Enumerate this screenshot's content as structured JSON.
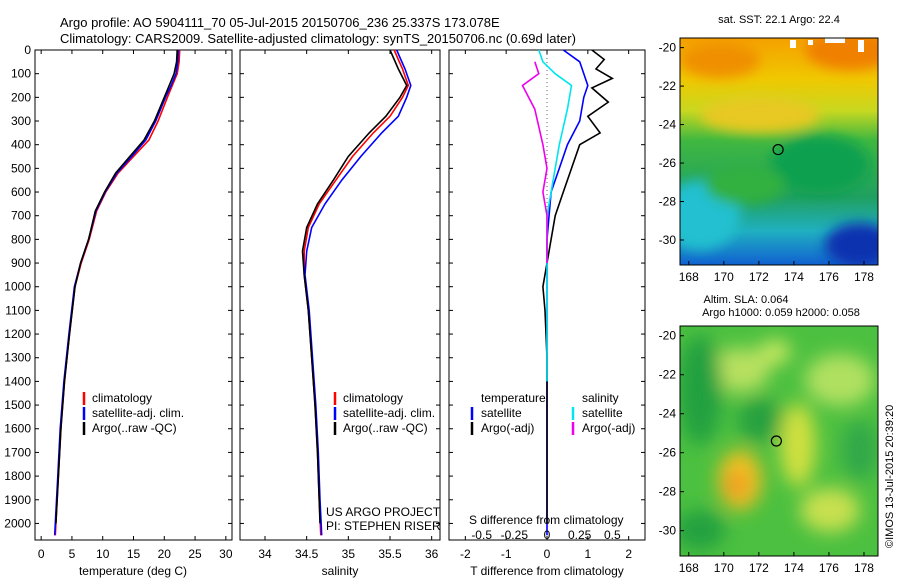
{
  "header": {
    "title_line1": "Argo profile: AO 5904111_70 05-Jul-2015 20150706_236 25.337S 173.078E",
    "title_line2": "Climatology: CARS2009. Satellite-adjusted climatology: synTS_20150706.nc (0.69d later)"
  },
  "credits": {
    "project": "US ARGO PROJECT",
    "pi": "PI: STEPHEN RISER",
    "timestamp": "©IMOS 13-Jul-2015 20:39:20"
  },
  "colors": {
    "climatology": "#ff0000",
    "satellite": "#0000ff",
    "argo": "#000000",
    "s_satellite": "#00e5ee",
    "s_argo": "#ee00ee"
  },
  "chart_data": [
    {
      "type": "line",
      "name": "temperature-profile",
      "xlabel": "temperature (deg C)",
      "ylabel": "",
      "xlim": [
        -1,
        31
      ],
      "ylim": [
        2070,
        0
      ],
      "xticks": [
        0,
        5,
        10,
        15,
        20,
        25,
        30
      ],
      "yticks": [
        0,
        100,
        200,
        300,
        400,
        500,
        600,
        700,
        800,
        900,
        1000,
        1100,
        1200,
        1300,
        1400,
        1500,
        1600,
        1700,
        1800,
        1900,
        2000
      ],
      "legend": [
        "climatology",
        "satellite-adj. clim.",
        "Argo(..raw -QC)"
      ],
      "legend_position": "lower-left",
      "series": [
        {
          "name": "climatology",
          "color": "red",
          "points": [
            [
              22.5,
              0
            ],
            [
              22.4,
              50
            ],
            [
              22.1,
              100
            ],
            [
              21.3,
              150
            ],
            [
              20.5,
              200
            ],
            [
              19.0,
              300
            ],
            [
              17.5,
              380
            ],
            [
              15.0,
              450
            ],
            [
              12.5,
              520
            ],
            [
              10.5,
              600
            ],
            [
              9.0,
              680
            ],
            [
              7.8,
              800
            ],
            [
              6.5,
              900
            ],
            [
              5.5,
              1000
            ],
            [
              4.6,
              1200
            ],
            [
              3.8,
              1400
            ],
            [
              3.2,
              1600
            ],
            [
              2.8,
              1800
            ],
            [
              2.4,
              2000
            ],
            [
              2.3,
              2050
            ]
          ]
        },
        {
          "name": "satellite-adj. clim.",
          "color": "blue",
          "points": [
            [
              22.3,
              0
            ],
            [
              22.2,
              50
            ],
            [
              21.9,
              100
            ],
            [
              21.1,
              150
            ],
            [
              20.2,
              200
            ],
            [
              18.6,
              300
            ],
            [
              17.0,
              380
            ],
            [
              14.7,
              450
            ],
            [
              12.3,
              520
            ],
            [
              10.4,
              600
            ],
            [
              8.9,
              680
            ],
            [
              7.7,
              800
            ],
            [
              6.4,
              900
            ],
            [
              5.4,
              1000
            ],
            [
              4.5,
              1200
            ],
            [
              3.7,
              1400
            ],
            [
              3.1,
              1600
            ],
            [
              2.7,
              1800
            ],
            [
              2.3,
              2000
            ],
            [
              2.2,
              2050
            ]
          ]
        },
        {
          "name": "Argo(..raw -QC)",
          "color": "black",
          "points": [
            [
              22.1,
              0
            ],
            [
              22.0,
              50
            ],
            [
              21.6,
              100
            ],
            [
              20.8,
              150
            ],
            [
              20.0,
              200
            ],
            [
              18.4,
              300
            ],
            [
              16.7,
              380
            ],
            [
              14.4,
              450
            ],
            [
              12.1,
              520
            ],
            [
              10.3,
              600
            ],
            [
              8.8,
              680
            ],
            [
              7.7,
              800
            ],
            [
              6.4,
              900
            ],
            [
              5.5,
              1000
            ],
            [
              4.6,
              1200
            ],
            [
              3.8,
              1400
            ],
            [
              3.2,
              1600
            ],
            [
              2.8,
              1800
            ],
            [
              2.4,
              2000
            ]
          ]
        }
      ]
    },
    {
      "type": "line",
      "name": "salinity-profile",
      "xlabel": "salinity",
      "ylabel": "",
      "xlim": [
        33.7,
        36.1
      ],
      "ylim": [
        2070,
        0
      ],
      "xticks": [
        34,
        34.5,
        35,
        35.5,
        36
      ],
      "legend": [
        "climatology",
        "satellite-adj. clim.",
        "Argo(..raw -QC)"
      ],
      "legend_position": "lower-right",
      "series": [
        {
          "name": "climatology",
          "color": "red",
          "points": [
            [
              35.55,
              0
            ],
            [
              35.6,
              40
            ],
            [
              35.65,
              80
            ],
            [
              35.72,
              150
            ],
            [
              35.65,
              200
            ],
            [
              35.5,
              280
            ],
            [
              35.3,
              350
            ],
            [
              35.05,
              450
            ],
            [
              34.85,
              550
            ],
            [
              34.65,
              650
            ],
            [
              34.52,
              750
            ],
            [
              34.47,
              850
            ],
            [
              34.47,
              950
            ],
            [
              34.52,
              1100
            ],
            [
              34.56,
              1300
            ],
            [
              34.6,
              1500
            ],
            [
              34.63,
              1700
            ],
            [
              34.65,
              1900
            ],
            [
              34.67,
              2050
            ]
          ]
        },
        {
          "name": "satellite-adj. clim.",
          "color": "blue",
          "points": [
            [
              35.58,
              0
            ],
            [
              35.63,
              40
            ],
            [
              35.68,
              80
            ],
            [
              35.75,
              150
            ],
            [
              35.7,
              200
            ],
            [
              35.6,
              280
            ],
            [
              35.4,
              350
            ],
            [
              35.15,
              450
            ],
            [
              34.92,
              550
            ],
            [
              34.72,
              650
            ],
            [
              34.56,
              750
            ],
            [
              34.5,
              850
            ],
            [
              34.48,
              950
            ],
            [
              34.53,
              1100
            ],
            [
              34.57,
              1300
            ],
            [
              34.61,
              1500
            ],
            [
              34.64,
              1700
            ],
            [
              34.66,
              1900
            ],
            [
              34.68,
              2050
            ]
          ]
        },
        {
          "name": "Argo(..raw -QC)",
          "color": "black",
          "points": [
            [
              35.5,
              0
            ],
            [
              35.55,
              40
            ],
            [
              35.6,
              80
            ],
            [
              35.7,
              150
            ],
            [
              35.62,
              200
            ],
            [
              35.45,
              280
            ],
            [
              35.25,
              350
            ],
            [
              35.0,
              450
            ],
            [
              34.82,
              550
            ],
            [
              34.63,
              650
            ],
            [
              34.5,
              750
            ],
            [
              34.45,
              850
            ],
            [
              34.47,
              950
            ],
            [
              34.52,
              1100
            ],
            [
              34.56,
              1300
            ],
            [
              34.6,
              1500
            ],
            [
              34.63,
              1700
            ],
            [
              34.65,
              1900
            ],
            [
              34.66,
              2000
            ]
          ]
        }
      ],
      "annotations": [
        "US ARGO PROJECT",
        "PI: STEPHEN RISER"
      ]
    },
    {
      "type": "line",
      "name": "difference-profile",
      "xlabel": "T difference from climatology",
      "xlabel_top": "S difference from climatology",
      "ylabel": "",
      "xlim": [
        -2.4,
        2.4
      ],
      "ylim": [
        2070,
        0
      ],
      "xticks": [
        -2,
        -1,
        0,
        1,
        2
      ],
      "s_xticks": [
        "-0.5",
        "-0.25",
        "0",
        "0.25",
        "0.5"
      ],
      "legend_groups": [
        "temperature",
        "salinity"
      ],
      "legend": [
        "satellite",
        "Argo(-adj)",
        "satellite",
        "Argo(-adj)"
      ],
      "legend_position": "lower-center",
      "series": [
        {
          "name": "temperature satellite",
          "color": "blue",
          "points": [
            [
              0.4,
              0
            ],
            [
              0.8,
              50
            ],
            [
              0.9,
              100
            ],
            [
              1.0,
              150
            ],
            [
              0.9,
              200
            ],
            [
              0.8,
              300
            ],
            [
              0.5,
              400
            ],
            [
              0.3,
              500
            ],
            [
              0.1,
              600
            ],
            [
              0.0,
              800
            ],
            [
              0.0,
              1000
            ],
            [
              0.0,
              1200
            ],
            [
              0.0,
              1500
            ],
            [
              0.0,
              1800
            ],
            [
              0.0,
              2050
            ]
          ]
        },
        {
          "name": "temperature Argo(-adj)",
          "color": "black",
          "points": [
            [
              1.1,
              0
            ],
            [
              1.4,
              40
            ],
            [
              1.2,
              80
            ],
            [
              1.6,
              120
            ],
            [
              1.1,
              160
            ],
            [
              1.5,
              220
            ],
            [
              1.0,
              280
            ],
            [
              1.3,
              350
            ],
            [
              0.8,
              400
            ],
            [
              0.6,
              500
            ],
            [
              0.4,
              600
            ],
            [
              0.2,
              700
            ],
            [
              0.1,
              800
            ],
            [
              0.0,
              900
            ],
            [
              -0.1,
              1000
            ],
            [
              -0.05,
              1100
            ],
            [
              0.0,
              1300
            ],
            [
              0.0,
              1500
            ],
            [
              0.0,
              1800
            ],
            [
              0.0,
              2000
            ]
          ]
        },
        {
          "name": "salinity satellite",
          "color": "cyan",
          "points": [
            [
              -0.2,
              0
            ],
            [
              -0.1,
              50
            ],
            [
              0.2,
              100
            ],
            [
              0.6,
              150
            ],
            [
              0.5,
              250
            ],
            [
              0.3,
              400
            ],
            [
              0.2,
              500
            ],
            [
              0.1,
              600
            ],
            [
              0.0,
              700
            ],
            [
              0.0,
              900
            ],
            [
              0.0,
              1200
            ],
            [
              0.0,
              1400
            ]
          ]
        },
        {
          "name": "salinity Argo(-adj)",
          "color": "magenta",
          "points": [
            [
              -0.3,
              50
            ],
            [
              -0.2,
              100
            ],
            [
              -0.6,
              150
            ],
            [
              -0.3,
              250
            ],
            [
              -0.1,
              400
            ],
            [
              0.0,
              500
            ],
            [
              -0.1,
              600
            ],
            [
              0.0,
              700
            ],
            [
              0.0,
              900
            ]
          ]
        }
      ]
    },
    {
      "type": "heatmap",
      "name": "sst-map",
      "title": "sat. SST: 22.1 Argo: 22.4",
      "xticks": [
        168,
        170,
        172,
        174,
        176,
        178
      ],
      "yticks": [
        -20,
        -22,
        -24,
        -26,
        -28,
        -30
      ],
      "xlim": [
        167.5,
        178.8
      ],
      "ylim": [
        -31.3,
        -19.5
      ],
      "marker": [
        173.1,
        -25.3
      ]
    },
    {
      "type": "heatmap",
      "name": "sla-map",
      "title_line1": "Altim. SLA: 0.064",
      "title_line2": "Argo h1000: 0.059 h2000: 0.058",
      "xticks": [
        168,
        170,
        172,
        174,
        176,
        178
      ],
      "yticks": [
        -20,
        -22,
        -24,
        -26,
        -28,
        -30
      ],
      "xlim": [
        167.5,
        178.8
      ],
      "ylim": [
        -31.3,
        -19.5
      ],
      "marker": [
        173.0,
        -25.4
      ]
    }
  ]
}
